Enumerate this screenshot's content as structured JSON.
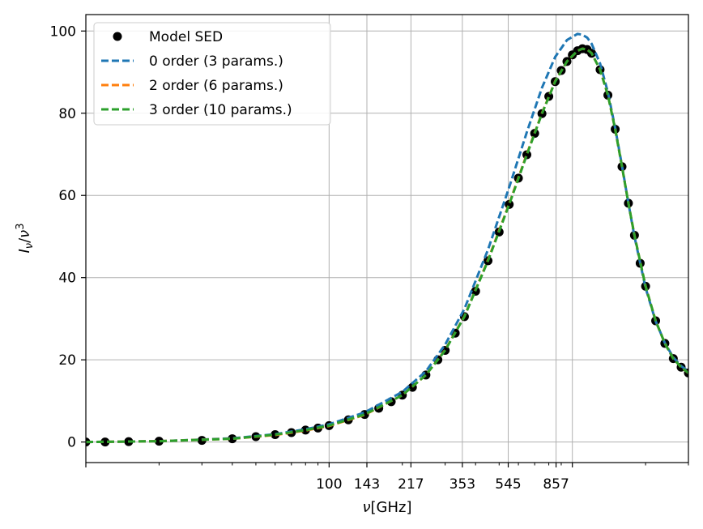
{
  "chart_data": {
    "type": "line",
    "xscale": "log",
    "xlim": [
      10,
      3000
    ],
    "ylim": [
      -5,
      104
    ],
    "xlabel": "ν[GHz]",
    "ylabel": "Iν/ν³",
    "xticks_labeled": [
      100,
      143,
      217,
      353,
      545,
      857
    ],
    "xtick_labels": [
      "100",
      "143",
      "217",
      "353",
      "545",
      "857"
    ],
    "yticks": [
      0,
      20,
      40,
      60,
      80,
      100
    ],
    "ytick_labels": [
      "0",
      "20",
      "40",
      "60",
      "80",
      "100"
    ],
    "grid": true,
    "legend": "top-left",
    "series": [
      {
        "name": "Model SED",
        "style": "markers",
        "color": "#000000",
        "x": [
          10,
          12,
          15,
          20,
          30,
          40,
          50,
          60,
          70,
          80,
          90,
          100,
          120,
          140,
          160,
          180,
          200,
          220,
          250,
          280,
          300,
          330,
          360,
          400,
          450,
          500,
          550,
          600,
          650,
          700,
          750,
          800,
          850,
          900,
          950,
          1000,
          1050,
          1100,
          1150,
          1200,
          1300,
          1400,
          1500,
          1600,
          1700,
          1800,
          1900,
          2000,
          2200,
          2400,
          2600,
          2800,
          3000
        ],
        "y": [
          0.0,
          0.0,
          0.1,
          0.2,
          0.4,
          0.8,
          1.3,
          1.8,
          2.3,
          2.9,
          3.4,
          4.0,
          5.4,
          6.7,
          8.2,
          9.8,
          11.4,
          13.3,
          16.3,
          20.0,
          22.3,
          26.5,
          30.5,
          36.7,
          44.1,
          51.1,
          57.8,
          64.2,
          69.9,
          75.1,
          79.9,
          84.1,
          87.7,
          90.4,
          92.6,
          94.2,
          95.2,
          95.7,
          95.5,
          94.6,
          90.6,
          84.4,
          76.1,
          67.0,
          58.1,
          50.3,
          43.5,
          37.9,
          29.5,
          24.0,
          20.3,
          18.2,
          16.8
        ]
      },
      {
        "name": "0 order (3 params.)",
        "style": "dashed",
        "color": "#1f77b4",
        "x": [
          10,
          20,
          40,
          60,
          80,
          100,
          140,
          200,
          250,
          300,
          360,
          450,
          550,
          650,
          750,
          850,
          950,
          1050,
          1100,
          1150,
          1200,
          1300,
          1400,
          1500,
          1600,
          1700,
          1800,
          2000,
          2200,
          2400,
          2600,
          2800,
          3000
        ],
        "y": [
          0.0,
          0.2,
          0.9,
          1.9,
          3.1,
          4.3,
          7.2,
          12.2,
          17.2,
          23.7,
          32.4,
          46.8,
          62.0,
          75.4,
          86.2,
          93.7,
          97.8,
          99.3,
          99.1,
          98.4,
          96.9,
          92.1,
          85.1,
          76.4,
          67.2,
          58.1,
          50.0,
          37.5,
          29.4,
          24.1,
          20.6,
          18.5,
          17.2
        ]
      },
      {
        "name": "2 order (6 params.)",
        "style": "dashed",
        "color": "#ff7f0e",
        "x": [
          10,
          20,
          40,
          60,
          80,
          100,
          140,
          200,
          250,
          300,
          360,
          450,
          550,
          650,
          750,
          850,
          950,
          1050,
          1100,
          1150,
          1200,
          1300,
          1400,
          1500,
          1600,
          1700,
          1800,
          2000,
          2200,
          2400,
          2600,
          2800,
          3000
        ],
        "y": [
          0.0,
          0.2,
          0.8,
          1.7,
          2.8,
          3.9,
          6.6,
          11.4,
          16.3,
          22.4,
          30.6,
          44.3,
          58.0,
          70.1,
          80.0,
          87.8,
          92.6,
          95.2,
          95.7,
          95.5,
          94.6,
          90.6,
          84.4,
          76.1,
          67.0,
          58.1,
          50.3,
          37.9,
          29.5,
          24.0,
          20.3,
          18.2,
          16.8
        ]
      },
      {
        "name": "3 order (10 params.)",
        "style": "dashed",
        "color": "#2ca02c",
        "x": [
          10,
          20,
          40,
          60,
          80,
          100,
          140,
          200,
          250,
          300,
          360,
          450,
          550,
          650,
          750,
          850,
          950,
          1050,
          1100,
          1150,
          1200,
          1300,
          1400,
          1500,
          1600,
          1700,
          1800,
          2000,
          2200,
          2400,
          2600,
          2800,
          3000
        ],
        "y": [
          0.0,
          0.2,
          0.8,
          1.8,
          2.9,
          4.0,
          6.7,
          11.4,
          16.3,
          22.3,
          30.5,
          44.1,
          57.8,
          69.9,
          79.9,
          87.7,
          92.6,
          95.2,
          95.7,
          95.5,
          94.6,
          90.6,
          84.4,
          76.1,
          67.0,
          58.1,
          50.3,
          37.9,
          29.5,
          24.0,
          20.3,
          18.2,
          16.8
        ]
      }
    ]
  }
}
